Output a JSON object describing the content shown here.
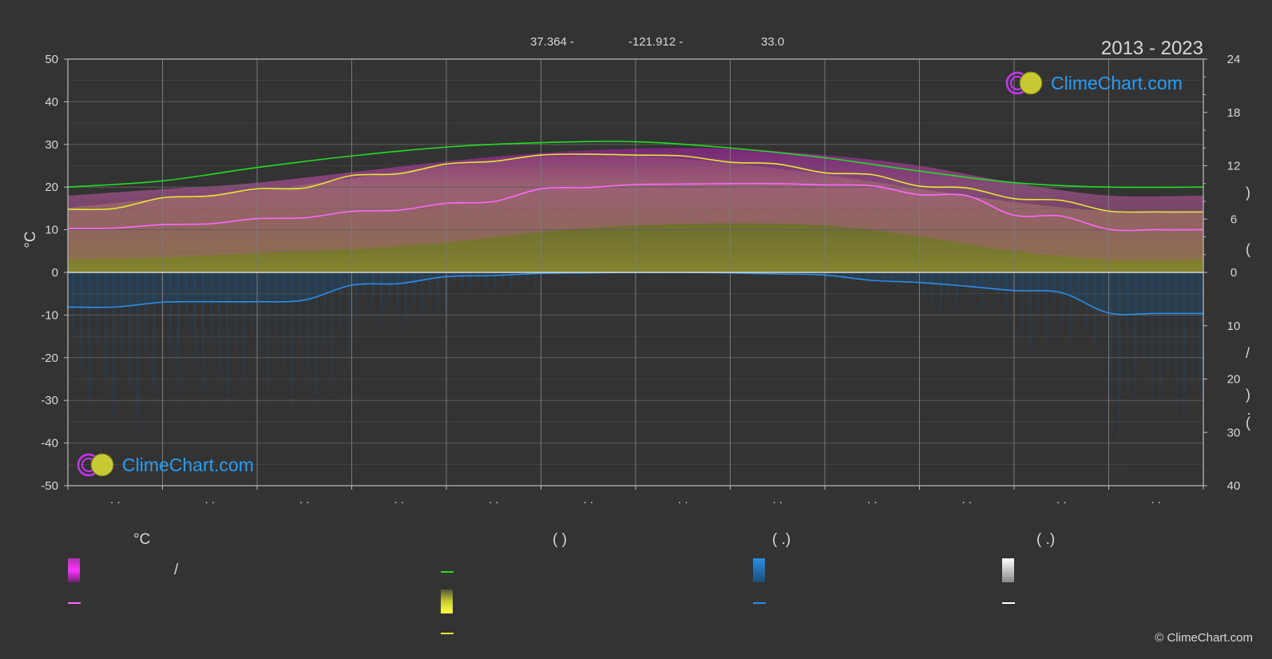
{
  "header": {
    "latitude": "37.364 -",
    "longitude": "-121.912 -",
    "elevation": "33.0",
    "years": "2013 - 2023"
  },
  "left_axis_label": "°C",
  "logo_text": "ClimeChart.com",
  "copyright": "© ClimeChart.com",
  "legend": {
    "col1_header": "°C",
    "col1_slash": "/",
    "col2_header": "(          )",
    "col3_header": "(   .)",
    "col4_header": "(   .)"
  },
  "colors": {
    "background": "#333333",
    "grid": "#5e5e5e",
    "daylight": "#22dd22",
    "sunshine": "#e6e633",
    "temp_mean": "#ff66ff",
    "precip": "#2a8ee8",
    "snow": "#ffffff"
  },
  "chart_data": {
    "type": "area",
    "months": 12,
    "left_axis": {
      "unit": "°C",
      "ylim": [
        -50,
        50
      ],
      "ticks": [
        50,
        40,
        30,
        20,
        10,
        0,
        -10,
        -20,
        -30,
        -40,
        -50
      ]
    },
    "right_axis_top": {
      "ylim": [
        0,
        24
      ],
      "ticks": [
        24,
        18,
        12,
        6,
        0
      ]
    },
    "right_axis_bottom": {
      "ylim": [
        0,
        40
      ],
      "ticks": [
        0,
        10,
        20,
        30,
        40
      ]
    },
    "x_tick_labels": [
      ". .",
      ". .",
      ". .",
      ". .",
      ". .",
      ". .",
      ". .",
      ". .",
      ". .",
      ". .",
      ". .",
      ". ."
    ],
    "grid": true,
    "series": [
      {
        "key": "daylight",
        "axis": "right_top",
        "x": [
          0,
          1,
          2,
          3,
          4,
          5,
          6,
          7,
          8,
          9,
          10,
          11,
          12
        ],
        "values": [
          9.6,
          10.3,
          11.8,
          13.1,
          14.1,
          14.6,
          14.7,
          14.0,
          12.9,
          11.4,
          10.1,
          9.6,
          9.6
        ]
      },
      {
        "key": "sunshine",
        "axis": "right_top",
        "x": [
          0,
          0.5,
          1,
          1.5,
          2,
          2.5,
          3,
          3.5,
          4,
          4.5,
          5,
          5.5,
          6,
          6.5,
          7,
          7.5,
          8,
          8.5,
          9,
          9.5,
          10,
          10.5,
          11,
          11.5,
          12
        ],
        "values": [
          7.1,
          7.2,
          8.4,
          8.6,
          9.4,
          9.5,
          10.9,
          11.1,
          12.2,
          12.5,
          13.2,
          13.3,
          13.2,
          13.1,
          12.4,
          12.2,
          11.2,
          11.0,
          9.7,
          9.5,
          8.3,
          8.1,
          6.9,
          6.8,
          6.8
        ]
      },
      {
        "key": "temp_mean",
        "axis": "left",
        "x": [
          0,
          0.5,
          1,
          1.5,
          2,
          2.5,
          3,
          3.5,
          4,
          4.5,
          5,
          5.5,
          6,
          6.5,
          7,
          7.5,
          8,
          8.5,
          9,
          9.5,
          10,
          10.5,
          11,
          11.5,
          12
        ],
        "values": [
          10.3,
          10.4,
          11.2,
          11.4,
          12.6,
          12.8,
          14.3,
          14.6,
          16.2,
          16.6,
          19.6,
          19.9,
          20.6,
          20.7,
          20.8,
          20.8,
          20.5,
          20.3,
          18.2,
          18.0,
          13.4,
          13.2,
          10.1,
          10.0,
          10.0
        ]
      },
      {
        "key": "precip",
        "axis": "right_bottom",
        "x": [
          0,
          0.5,
          1,
          1.5,
          2,
          2.5,
          3,
          3.5,
          4,
          4.5,
          5,
          5.5,
          6,
          6.5,
          7,
          7.5,
          8,
          8.5,
          9,
          9.5,
          10,
          10.5,
          11,
          11.5,
          12
        ],
        "values": [
          6.5,
          6.5,
          5.6,
          5.5,
          5.5,
          5.2,
          2.4,
          2.1,
          0.8,
          0.6,
          0.2,
          0.1,
          0.0,
          0.0,
          0.1,
          0.3,
          0.5,
          1.5,
          1.9,
          2.6,
          3.4,
          3.8,
          7.6,
          7.7,
          7.7
        ]
      }
    ],
    "bands": {
      "temp_range": {
        "low": [
          3,
          3.5,
          4.5,
          5.5,
          7,
          9.5,
          11,
          11.5,
          11,
          8.5,
          5,
          3,
          3
        ],
        "high": [
          18,
          19.5,
          21,
          23.5,
          26,
          28,
          29,
          29,
          27.5,
          25,
          21,
          18,
          18
        ]
      },
      "sunshine_fill": {
        "low": [
          0,
          0,
          0,
          0,
          0,
          0,
          0,
          0,
          0,
          0,
          0,
          0,
          0
        ],
        "high": [
          7.3,
          8.3,
          9.2,
          10.6,
          12.0,
          13.0,
          13.1,
          12.3,
          11.0,
          9.4,
          7.9,
          6.9,
          6.8
        ]
      }
    }
  }
}
